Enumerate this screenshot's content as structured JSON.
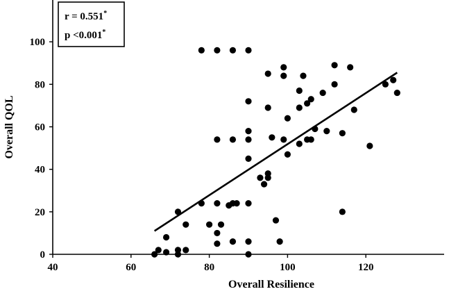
{
  "chart_data": {
    "type": "scatter",
    "title": "",
    "xlabel": "Overall Resilience",
    "ylabel": "Overall QOL",
    "xlim": [
      40,
      140
    ],
    "ylim": [
      0,
      120
    ],
    "xticks": [
      40,
      60,
      80,
      100,
      120
    ],
    "yticks": [
      0,
      20,
      40,
      60,
      80,
      100
    ],
    "annotation": {
      "r_text": "r = 0.551",
      "r_mark": "*",
      "p_text": "p <0.001",
      "p_mark": "*"
    },
    "trendline": {
      "x": [
        66,
        128
      ],
      "y": [
        11,
        85.5
      ]
    },
    "points": [
      {
        "x": 66,
        "y": 0
      },
      {
        "x": 67,
        "y": 2
      },
      {
        "x": 69,
        "y": 1
      },
      {
        "x": 69,
        "y": 8
      },
      {
        "x": 72,
        "y": 0
      },
      {
        "x": 72,
        "y": 2
      },
      {
        "x": 72,
        "y": 20
      },
      {
        "x": 74,
        "y": 2
      },
      {
        "x": 74,
        "y": 14
      },
      {
        "x": 78,
        "y": 24
      },
      {
        "x": 78,
        "y": 96
      },
      {
        "x": 80,
        "y": 14
      },
      {
        "x": 82,
        "y": 5
      },
      {
        "x": 82,
        "y": 10
      },
      {
        "x": 82,
        "y": 24
      },
      {
        "x": 82,
        "y": 54
      },
      {
        "x": 82,
        "y": 96
      },
      {
        "x": 83,
        "y": 14
      },
      {
        "x": 85,
        "y": 23
      },
      {
        "x": 86,
        "y": 6
      },
      {
        "x": 86,
        "y": 24
      },
      {
        "x": 86,
        "y": 54
      },
      {
        "x": 86,
        "y": 96
      },
      {
        "x": 87,
        "y": 24
      },
      {
        "x": 90,
        "y": 0
      },
      {
        "x": 90,
        "y": 6
      },
      {
        "x": 90,
        "y": 24
      },
      {
        "x": 90,
        "y": 45
      },
      {
        "x": 90,
        "y": 54
      },
      {
        "x": 90,
        "y": 58
      },
      {
        "x": 90,
        "y": 72
      },
      {
        "x": 90,
        "y": 96
      },
      {
        "x": 93,
        "y": 36
      },
      {
        "x": 94,
        "y": 33
      },
      {
        "x": 95,
        "y": 36
      },
      {
        "x": 95,
        "y": 38
      },
      {
        "x": 95,
        "y": 69
      },
      {
        "x": 95,
        "y": 85
      },
      {
        "x": 96,
        "y": 55
      },
      {
        "x": 97,
        "y": 16
      },
      {
        "x": 98,
        "y": 6
      },
      {
        "x": 99,
        "y": 54
      },
      {
        "x": 99,
        "y": 84
      },
      {
        "x": 99,
        "y": 88
      },
      {
        "x": 100,
        "y": 47
      },
      {
        "x": 100,
        "y": 64
      },
      {
        "x": 103,
        "y": 52
      },
      {
        "x": 103,
        "y": 69
      },
      {
        "x": 103,
        "y": 77
      },
      {
        "x": 104,
        "y": 84
      },
      {
        "x": 105,
        "y": 54
      },
      {
        "x": 105,
        "y": 71
      },
      {
        "x": 106,
        "y": 54
      },
      {
        "x": 106,
        "y": 73
      },
      {
        "x": 107,
        "y": 59
      },
      {
        "x": 109,
        "y": 76
      },
      {
        "x": 110,
        "y": 58
      },
      {
        "x": 112,
        "y": 80
      },
      {
        "x": 112,
        "y": 89
      },
      {
        "x": 114,
        "y": 20
      },
      {
        "x": 114,
        "y": 57
      },
      {
        "x": 116,
        "y": 88
      },
      {
        "x": 117,
        "y": 68
      },
      {
        "x": 121,
        "y": 51
      },
      {
        "x": 125,
        "y": 80
      },
      {
        "x": 127,
        "y": 82
      },
      {
        "x": 128,
        "y": 76
      }
    ]
  }
}
